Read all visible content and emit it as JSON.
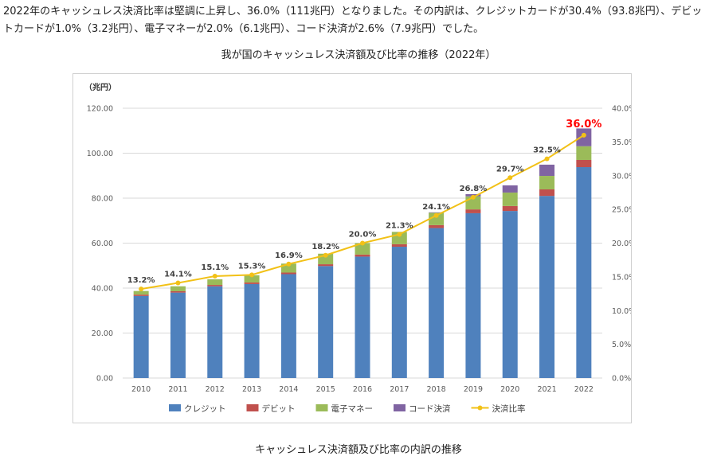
{
  "intro_text": "2022年のキャッシュレス決済比率は堅調に上昇し、36.0%（111兆円）となりました。その内訳は、クレジットカードが30.4%（93.8兆円）、デビットカードが1.0%（3.2兆円）、電子マネーが2.0%（6.1兆円）、コード決済が2.6%（7.9兆円）でした。",
  "caption": "キャッシュレス決済額及び比率の内訳の推移",
  "colors": {
    "credit": "#4f81bd",
    "debit": "#c0504d",
    "emoney": "#9bbb59",
    "code": "#8064a2",
    "ratio": "#f2c117",
    "highlight": "#ff0000"
  },
  "chart_data": {
    "type": "bar",
    "stacked": true,
    "title": "我が国のキャッシュレス決済額及び比率の推移（2022年）",
    "ylabel": "（兆円）",
    "ylim": [
      0,
      120
    ],
    "yticks": [
      "0.00",
      "20.00",
      "40.00",
      "60.00",
      "80.00",
      "100.00",
      "120.00"
    ],
    "y2lim": [
      0,
      40
    ],
    "y2ticks": [
      "0.0%",
      "5.0%",
      "10.0%",
      "15.0%",
      "20.0%",
      "25.0%",
      "30.0%",
      "35.0%",
      "40.0%"
    ],
    "grid": true,
    "legend_position": "bottom",
    "categories": [
      "2010",
      "2011",
      "2012",
      "2013",
      "2014",
      "2015",
      "2016",
      "2017",
      "2018",
      "2019",
      "2020",
      "2021",
      "2022"
    ],
    "series": [
      {
        "name": "クレジット",
        "key": "credit",
        "values": [
          36.5,
          38.0,
          40.8,
          41.8,
          46.2,
          49.8,
          54.0,
          58.4,
          66.7,
          73.3,
          74.3,
          81.0,
          93.8
        ]
      },
      {
        "name": "デビット",
        "key": "debit",
        "values": [
          0.6,
          0.6,
          0.6,
          0.7,
          0.7,
          0.8,
          0.9,
          1.1,
          1.3,
          1.7,
          2.2,
          2.9,
          3.2
        ]
      },
      {
        "name": "電子マネー",
        "key": "emoney",
        "values": [
          1.6,
          2.2,
          2.5,
          3.2,
          4.0,
          4.7,
          5.1,
          5.5,
          5.5,
          5.8,
          6.0,
          6.0,
          6.1
        ]
      },
      {
        "name": "コード決済",
        "key": "code",
        "values": [
          0,
          0,
          0,
          0,
          0,
          0,
          0,
          0,
          0.2,
          1.0,
          3.2,
          5.0,
          7.9
        ]
      }
    ],
    "line_series": {
      "name": "決済比率",
      "axis": "right",
      "values": [
        13.2,
        14.1,
        15.1,
        15.3,
        16.9,
        18.2,
        20.0,
        21.3,
        24.1,
        26.8,
        29.7,
        32.5,
        36.0
      ]
    },
    "line_labels": [
      "13.2%",
      "14.1%",
      "15.1%",
      "15.3%",
      "16.9%",
      "18.2%",
      "20.0%",
      "21.3%",
      "24.1%",
      "26.8%",
      "29.7%",
      "32.5%",
      "36.0%"
    ]
  }
}
